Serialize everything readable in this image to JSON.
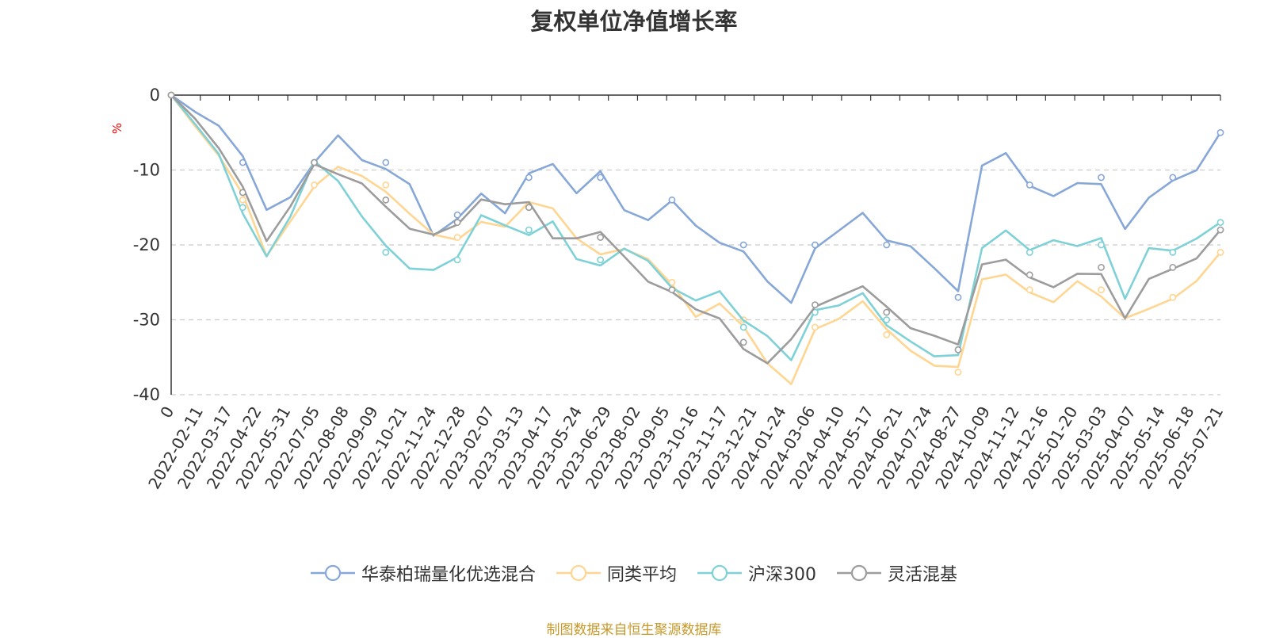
{
  "chart_data": {
    "type": "line",
    "title": "复权单位净值增长率",
    "ylabel": "%",
    "ylim": [
      -40,
      0
    ],
    "yticks": [
      0,
      -10,
      -20,
      -30,
      -40
    ],
    "grid": "horizontal dashed",
    "legend_position": "bottom",
    "x_tick_labels": [
      "0",
      "2022-02-11",
      "2022-03-17",
      "2022-04-22",
      "2022-05-31",
      "2022-07-05",
      "2022-08-08",
      "2022-09-09",
      "2022-10-21",
      "2022-11-24",
      "2022-12-28",
      "2023-02-07",
      "2023-03-13",
      "2023-04-17",
      "2023-05-24",
      "2023-06-29",
      "2023-08-02",
      "2023-09-05",
      "2023-10-16",
      "2023-11-17",
      "2023-12-21",
      "2024-01-24",
      "2024-03-06",
      "2024-04-10",
      "2024-05-17",
      "2024-06-21",
      "2024-07-24",
      "2024-08-27",
      "2024-10-09",
      "2024-11-12",
      "2024-12-16",
      "2025-01-20",
      "2025-03-03",
      "2025-04-07",
      "2025-05-14",
      "2025-06-18",
      "2025-07-21"
    ],
    "series": [
      {
        "name": "华泰柏瑞量化优选混合",
        "color": "#86a7d8",
        "values": [
          0,
          -3,
          -5,
          -9,
          -16,
          -14,
          -9,
          -5,
          -8,
          -9,
          -11,
          -18,
          -16,
          -13,
          -16,
          -11,
          -10,
          -14,
          -11,
          -16,
          -17,
          -14,
          -17,
          -19,
          -20,
          -24,
          -27,
          -20,
          -18,
          -16,
          -20,
          -21,
          -24,
          -27,
          -10,
          -8,
          -12,
          -13,
          -11,
          -11,
          -17,
          -13,
          -11,
          -10,
          -5
        ]
      },
      {
        "name": "同类平均",
        "color": "#ffd592",
        "values": [
          0,
          -5,
          -9,
          -14,
          -22,
          -17,
          -12,
          -9,
          -10,
          -12,
          -15,
          -18,
          -19,
          -17,
          -18,
          -15,
          -16,
          -20,
          -22,
          -21,
          -22,
          -25,
          -29,
          -27,
          -30,
          -35,
          -38,
          -31,
          -30,
          -28,
          -32,
          -35,
          -37,
          -37,
          -25,
          -24,
          -26,
          -27,
          -24,
          -26,
          -29,
          -28,
          -27,
          -25,
          -21
        ]
      },
      {
        "name": "沪深300",
        "color": "#7ed1d6",
        "values": [
          0,
          -3,
          -7,
          -15,
          -21,
          -16,
          -9,
          -12,
          -17,
          -21,
          -24,
          -24,
          -22,
          -16,
          -17,
          -18,
          -16,
          -21,
          -22,
          -20,
          -22,
          -26,
          -28,
          -27,
          -31,
          -33,
          -36,
          -29,
          -28,
          -26,
          -30,
          -32,
          -34,
          -34,
          -20,
          -18,
          -21,
          -20,
          -21,
          -20,
          -28,
          -21,
          -21,
          -19,
          -17
        ]
      },
      {
        "name": "灵活混基",
        "color": "#9c9c9c",
        "values": [
          0,
          -4,
          -8,
          -13,
          -20,
          -15,
          -9,
          -10,
          -11,
          -14,
          -17,
          -18,
          -17,
          -14,
          -15,
          -15,
          -20,
          -20,
          -19,
          -22,
          -25,
          -26,
          -28,
          -29,
          -33,
          -35,
          -32,
          -28,
          -27,
          -26,
          -29,
          -32,
          -33,
          -34,
          -23,
          -22,
          -24,
          -25,
          -23,
          -23,
          -29,
          -24,
          -23,
          -22,
          -18
        ]
      }
    ]
  },
  "source_note": "制图数据来自恒生聚源数据库"
}
